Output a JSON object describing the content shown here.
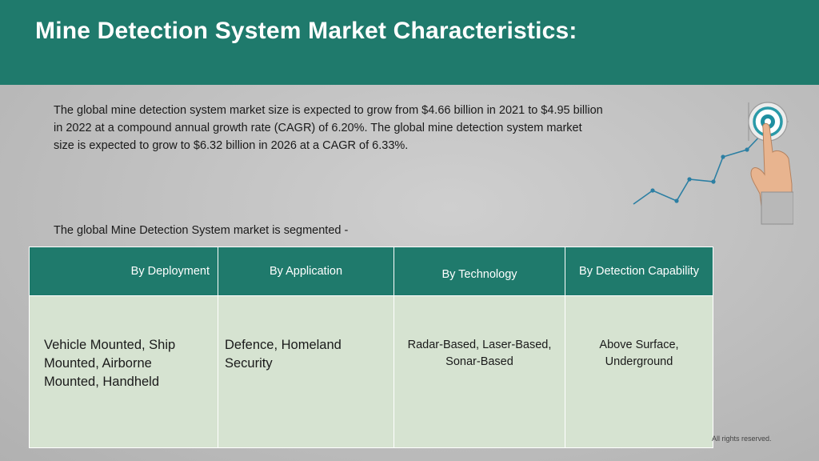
{
  "header": {
    "title": "Mine Detection System Market Characteristics:"
  },
  "intro": {
    "text": "The global mine detection system market size is expected to grow from $4.66 billion in 2021 to $4.95 billion in 2022 at a compound annual growth rate (CAGR) of 6.20%. The global mine detection system market size is expected to grow to $6.32 billion in 2026 at a CAGR of 6.33%."
  },
  "segment": {
    "label": "The global Mine Detection System market is segmented -",
    "columns": [
      {
        "header": "By Deployment",
        "content": "Vehicle Mounted, Ship Mounted, Airborne Mounted, Handheld"
      },
      {
        "header": "By Application",
        "content": "Defence, Homeland Security"
      },
      {
        "header": "By Technology",
        "content": "Radar-Based, Laser-Based, Sonar-Based"
      },
      {
        "header": "By Detection Capability",
        "content": "Above Surface, Underground"
      }
    ]
  },
  "footer": {
    "rights": "All rights reserved."
  },
  "colors": {
    "brand_teal": "#1f7a6c",
    "cell_green": "#d6e3d1"
  },
  "icons": {
    "graphic": "hand-touching-target-growth-chart-icon"
  }
}
